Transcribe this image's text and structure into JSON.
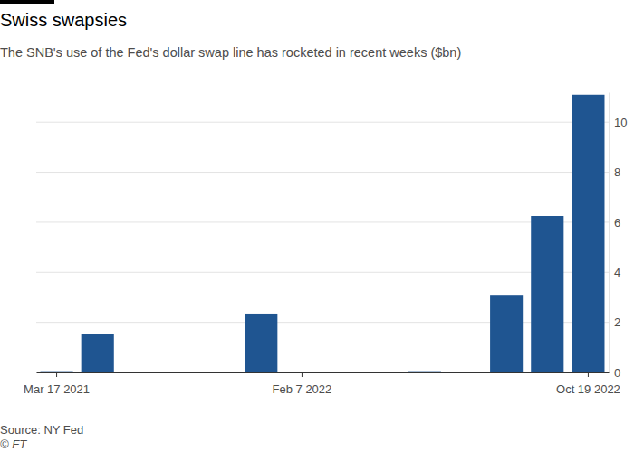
{
  "chart_data": {
    "type": "bar",
    "title": "Swiss swapsies",
    "subtitle": "The SNB's use of the Fed's dollar swap line has rocketed in recent weeks ($bn)",
    "source": "Source: NY Fed",
    "credit": "© FT",
    "categories": [
      "Mar 17 2021",
      null,
      null,
      null,
      null,
      null,
      "Feb 7 2022",
      null,
      null,
      null,
      null,
      null,
      null,
      "Oct 19 2022"
    ],
    "values": [
      0.05,
      1.55,
      0,
      0,
      0.01,
      2.35,
      0,
      0,
      0.02,
      0.05,
      0.02,
      3.1,
      6.25,
      11.1
    ],
    "color": "#1f5591",
    "ylim": [
      0,
      11.2
    ],
    "yticks": [
      0,
      2,
      4,
      6,
      8,
      10
    ],
    "grid": true
  }
}
